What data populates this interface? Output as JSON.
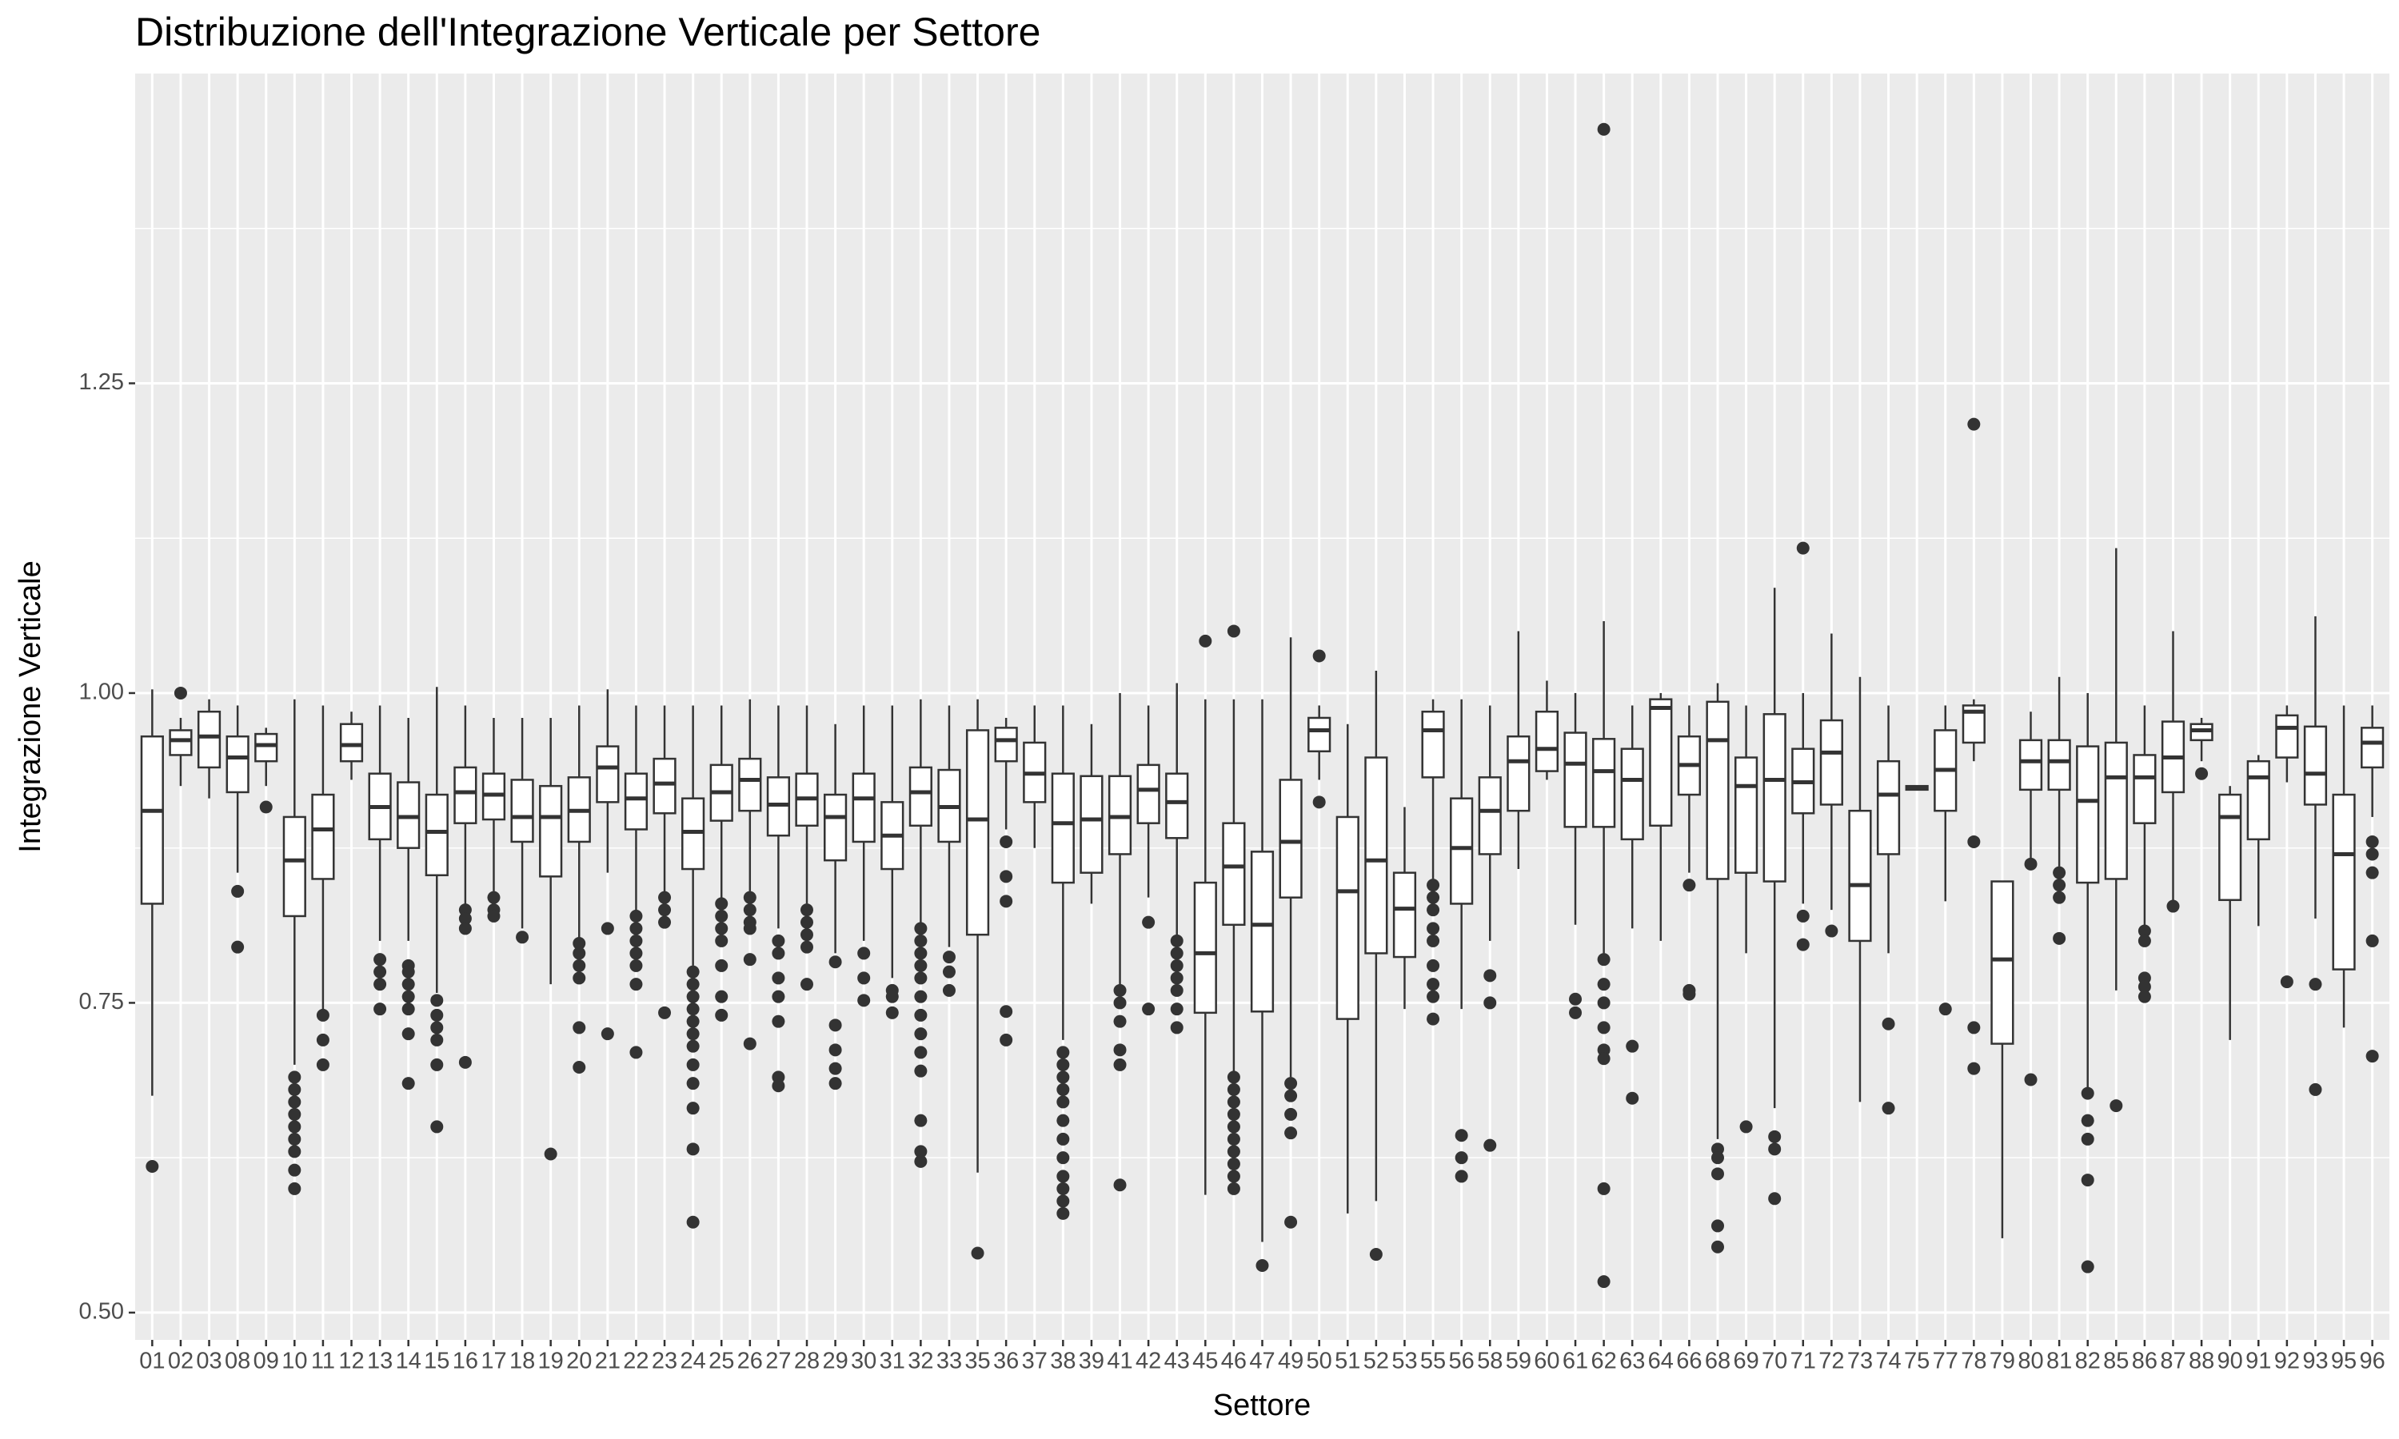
{
  "chart_data": {
    "type": "boxplot",
    "title": "Distribuzione dell'Integrazione Verticale per Settore",
    "x_label": "Settore",
    "y_label": "Integrazione Verticale",
    "ylim": [
      0.478,
      1.5
    ],
    "yticks": [
      {
        "value": 0.5,
        "label": "0.50"
      },
      {
        "value": 0.75,
        "label": "0.75"
      },
      {
        "value": 1.0,
        "label": "1.00"
      },
      {
        "value": 1.25,
        "label": "1.25"
      }
    ],
    "grid": true,
    "minor_grid": true,
    "color": "#333333",
    "box_fill": "#ffffff",
    "panel_color": "#ebebeb",
    "categories": [
      "01",
      "02",
      "03",
      "08",
      "09",
      "10",
      "11",
      "12",
      "13",
      "14",
      "15",
      "16",
      "17",
      "18",
      "19",
      "20",
      "21",
      "22",
      "23",
      "24",
      "25",
      "26",
      "27",
      "28",
      "29",
      "30",
      "31",
      "32",
      "33",
      "35",
      "36",
      "37",
      "38",
      "39",
      "41",
      "42",
      "43",
      "45",
      "46",
      "47",
      "49",
      "50",
      "51",
      "52",
      "53",
      "55",
      "56",
      "58",
      "59",
      "60",
      "61",
      "62",
      "63",
      "64",
      "66",
      "68",
      "69",
      "70",
      "71",
      "72",
      "73",
      "74",
      "75",
      "77",
      "78",
      "79",
      "80",
      "81",
      "82",
      "85",
      "86",
      "87",
      "88",
      "90",
      "91",
      "92",
      "93",
      "95",
      "96"
    ],
    "boxes": [
      {
        "min": 0.675,
        "q1": 0.83,
        "median": 0.905,
        "q3": 0.965,
        "max": 1.003,
        "outliers": [
          0.618
        ]
      },
      {
        "min": 0.925,
        "q1": 0.95,
        "median": 0.962,
        "q3": 0.97,
        "max": 0.98,
        "outliers": [
          1.0
        ]
      },
      {
        "min": 0.915,
        "q1": 0.94,
        "median": 0.965,
        "q3": 0.985,
        "max": 0.995,
        "outliers": []
      },
      {
        "min": 0.855,
        "q1": 0.92,
        "median": 0.948,
        "q3": 0.965,
        "max": 0.99,
        "outliers": [
          0.84,
          0.795
        ]
      },
      {
        "min": 0.925,
        "q1": 0.945,
        "median": 0.958,
        "q3": 0.967,
        "max": 0.972,
        "outliers": [
          0.908
        ]
      },
      {
        "min": 0.7,
        "q1": 0.82,
        "median": 0.865,
        "q3": 0.9,
        "max": 0.995,
        "outliers": [
          0.69,
          0.68,
          0.67,
          0.66,
          0.65,
          0.64,
          0.63,
          0.615,
          0.6
        ]
      },
      {
        "min": 0.745,
        "q1": 0.85,
        "median": 0.89,
        "q3": 0.918,
        "max": 0.99,
        "outliers": [
          0.74,
          0.72,
          0.7
        ]
      },
      {
        "min": 0.93,
        "q1": 0.945,
        "median": 0.958,
        "q3": 0.975,
        "max": 0.985,
        "outliers": []
      },
      {
        "min": 0.8,
        "q1": 0.882,
        "median": 0.908,
        "q3": 0.935,
        "max": 0.99,
        "outliers": [
          0.785,
          0.775,
          0.765,
          0.745
        ]
      },
      {
        "min": 0.8,
        "q1": 0.875,
        "median": 0.9,
        "q3": 0.928,
        "max": 0.98,
        "outliers": [
          0.78,
          0.775,
          0.765,
          0.755,
          0.745,
          0.725,
          0.685
        ]
      },
      {
        "min": 0.758,
        "q1": 0.853,
        "median": 0.888,
        "q3": 0.918,
        "max": 1.005,
        "outliers": [
          0.752,
          0.74,
          0.73,
          0.72,
          0.7,
          0.65
        ]
      },
      {
        "min": 0.828,
        "q1": 0.895,
        "median": 0.92,
        "q3": 0.94,
        "max": 0.99,
        "outliers": [
          0.825,
          0.818,
          0.81,
          0.702
        ]
      },
      {
        "min": 0.84,
        "q1": 0.898,
        "median": 0.918,
        "q3": 0.935,
        "max": 0.98,
        "outliers": [
          0.835,
          0.825,
          0.82
        ]
      },
      {
        "min": 0.81,
        "q1": 0.88,
        "median": 0.9,
        "q3": 0.93,
        "max": 0.98,
        "outliers": [
          0.803
        ]
      },
      {
        "min": 0.765,
        "q1": 0.852,
        "median": 0.9,
        "q3": 0.925,
        "max": 0.98,
        "outliers": [
          0.628
        ]
      },
      {
        "min": 0.8,
        "q1": 0.88,
        "median": 0.905,
        "q3": 0.932,
        "max": 0.99,
        "outliers": [
          0.798,
          0.79,
          0.78,
          0.77,
          0.73,
          0.698
        ]
      },
      {
        "min": 0.855,
        "q1": 0.912,
        "median": 0.94,
        "q3": 0.957,
        "max": 1.003,
        "outliers": [
          0.81,
          0.725
        ]
      },
      {
        "min": 0.825,
        "q1": 0.89,
        "median": 0.915,
        "q3": 0.935,
        "max": 0.99,
        "outliers": [
          0.82,
          0.81,
          0.8,
          0.79,
          0.78,
          0.765,
          0.71
        ]
      },
      {
        "min": 0.838,
        "q1": 0.903,
        "median": 0.927,
        "q3": 0.947,
        "max": 0.99,
        "outliers": [
          0.835,
          0.825,
          0.815,
          0.742
        ]
      },
      {
        "min": 0.78,
        "q1": 0.858,
        "median": 0.888,
        "q3": 0.915,
        "max": 0.99,
        "outliers": [
          0.775,
          0.765,
          0.755,
          0.745,
          0.735,
          0.725,
          0.715,
          0.7,
          0.685,
          0.665,
          0.632,
          0.573
        ]
      },
      {
        "min": 0.835,
        "q1": 0.897,
        "median": 0.92,
        "q3": 0.942,
        "max": 0.99,
        "outliers": [
          0.83,
          0.82,
          0.81,
          0.8,
          0.78,
          0.755,
          0.74
        ]
      },
      {
        "min": 0.84,
        "q1": 0.905,
        "median": 0.93,
        "q3": 0.947,
        "max": 0.995,
        "outliers": [
          0.835,
          0.825,
          0.815,
          0.81,
          0.785,
          0.717
        ]
      },
      {
        "min": 0.81,
        "q1": 0.885,
        "median": 0.91,
        "q3": 0.932,
        "max": 0.99,
        "outliers": [
          0.8,
          0.79,
          0.77,
          0.755,
          0.735,
          0.69,
          0.683
        ]
      },
      {
        "min": 0.83,
        "q1": 0.893,
        "median": 0.915,
        "q3": 0.935,
        "max": 0.99,
        "outliers": [
          0.825,
          0.815,
          0.805,
          0.795,
          0.765
        ]
      },
      {
        "min": 0.79,
        "q1": 0.865,
        "median": 0.9,
        "q3": 0.918,
        "max": 0.975,
        "outliers": [
          0.783,
          0.732,
          0.712,
          0.697,
          0.685
        ]
      },
      {
        "min": 0.8,
        "q1": 0.88,
        "median": 0.915,
        "q3": 0.935,
        "max": 0.99,
        "outliers": [
          0.79,
          0.77,
          0.752
        ]
      },
      {
        "min": 0.77,
        "q1": 0.858,
        "median": 0.885,
        "q3": 0.912,
        "max": 0.99,
        "outliers": [
          0.76,
          0.755,
          0.742
        ]
      },
      {
        "min": 0.815,
        "q1": 0.893,
        "median": 0.92,
        "q3": 0.94,
        "max": 0.995,
        "outliers": [
          0.81,
          0.8,
          0.79,
          0.78,
          0.77,
          0.755,
          0.74,
          0.725,
          0.71,
          0.695,
          0.655,
          0.63,
          0.622
        ]
      },
      {
        "min": 0.795,
        "q1": 0.88,
        "median": 0.908,
        "q3": 0.938,
        "max": 0.99,
        "outliers": [
          0.787,
          0.775,
          0.76
        ]
      },
      {
        "min": 0.613,
        "q1": 0.805,
        "median": 0.898,
        "q3": 0.97,
        "max": 0.995,
        "outliers": [
          0.548
        ]
      },
      {
        "min": 0.89,
        "q1": 0.945,
        "median": 0.962,
        "q3": 0.972,
        "max": 0.98,
        "outliers": [
          0.88,
          0.852,
          0.832,
          0.743,
          0.72
        ]
      },
      {
        "min": 0.875,
        "q1": 0.912,
        "median": 0.935,
        "q3": 0.96,
        "max": 0.99,
        "outliers": []
      },
      {
        "min": 0.72,
        "q1": 0.847,
        "median": 0.895,
        "q3": 0.935,
        "max": 0.99,
        "outliers": [
          0.71,
          0.7,
          0.69,
          0.68,
          0.67,
          0.655,
          0.64,
          0.625,
          0.61,
          0.6,
          0.59,
          0.58
        ]
      },
      {
        "min": 0.83,
        "q1": 0.855,
        "median": 0.898,
        "q3": 0.933,
        "max": 0.975,
        "outliers": []
      },
      {
        "min": 0.765,
        "q1": 0.87,
        "median": 0.9,
        "q3": 0.933,
        "max": 1.0,
        "outliers": [
          0.76,
          0.75,
          0.735,
          0.712,
          0.7,
          0.603
        ]
      },
      {
        "min": 0.835,
        "q1": 0.895,
        "median": 0.922,
        "q3": 0.942,
        "max": 0.99,
        "outliers": [
          0.815,
          0.745
        ]
      },
      {
        "min": 0.805,
        "q1": 0.883,
        "median": 0.912,
        "q3": 0.935,
        "max": 1.008,
        "outliers": [
          0.8,
          0.79,
          0.78,
          0.77,
          0.76,
          0.745,
          0.73
        ]
      },
      {
        "min": 0.595,
        "q1": 0.742,
        "median": 0.79,
        "q3": 0.847,
        "max": 0.995,
        "outliers": [
          1.042
        ]
      },
      {
        "min": 0.695,
        "q1": 0.813,
        "median": 0.86,
        "q3": 0.895,
        "max": 0.995,
        "outliers": [
          1.05,
          0.69,
          0.68,
          0.67,
          0.66,
          0.65,
          0.64,
          0.63,
          0.62,
          0.61,
          0.6
        ]
      },
      {
        "min": 0.557,
        "q1": 0.743,
        "median": 0.813,
        "q3": 0.872,
        "max": 0.995,
        "outliers": [
          0.538
        ]
      },
      {
        "min": 0.69,
        "q1": 0.835,
        "median": 0.88,
        "q3": 0.93,
        "max": 1.045,
        "outliers": [
          0.685,
          0.675,
          0.66,
          0.645,
          0.573
        ]
      },
      {
        "min": 0.93,
        "q1": 0.953,
        "median": 0.97,
        "q3": 0.98,
        "max": 0.99,
        "outliers": [
          1.03,
          0.912
        ]
      },
      {
        "min": 0.58,
        "q1": 0.737,
        "median": 0.84,
        "q3": 0.9,
        "max": 0.975,
        "outliers": []
      },
      {
        "min": 0.59,
        "q1": 0.79,
        "median": 0.865,
        "q3": 0.948,
        "max": 1.018,
        "outliers": [
          0.547
        ]
      },
      {
        "min": 0.745,
        "q1": 0.787,
        "median": 0.826,
        "q3": 0.855,
        "max": 0.908,
        "outliers": []
      },
      {
        "min": 0.85,
        "q1": 0.932,
        "median": 0.97,
        "q3": 0.985,
        "max": 0.995,
        "outliers": [
          0.845,
          0.835,
          0.825,
          0.81,
          0.8,
          0.78,
          0.765,
          0.755,
          0.737
        ]
      },
      {
        "min": 0.745,
        "q1": 0.83,
        "median": 0.875,
        "q3": 0.915,
        "max": 0.995,
        "outliers": [
          0.643,
          0.625,
          0.61
        ]
      },
      {
        "min": 0.8,
        "q1": 0.87,
        "median": 0.905,
        "q3": 0.932,
        "max": 0.99,
        "outliers": [
          0.772,
          0.75,
          0.635
        ]
      },
      {
        "min": 0.858,
        "q1": 0.905,
        "median": 0.945,
        "q3": 0.965,
        "max": 1.05,
        "outliers": []
      },
      {
        "min": 0.93,
        "q1": 0.937,
        "median": 0.955,
        "q3": 0.985,
        "max": 1.01,
        "outliers": []
      },
      {
        "min": 0.813,
        "q1": 0.892,
        "median": 0.943,
        "q3": 0.968,
        "max": 1.0,
        "outliers": [
          0.753,
          0.742
        ]
      },
      {
        "min": 0.79,
        "q1": 0.892,
        "median": 0.937,
        "q3": 0.963,
        "max": 1.058,
        "outliers": [
          1.455,
          0.785,
          0.765,
          0.75,
          0.73,
          0.712,
          0.705,
          0.6,
          0.525
        ]
      },
      {
        "min": 0.81,
        "q1": 0.882,
        "median": 0.93,
        "q3": 0.955,
        "max": 0.99,
        "outliers": [
          0.715,
          0.673
        ]
      },
      {
        "min": 0.8,
        "q1": 0.893,
        "median": 0.988,
        "q3": 0.995,
        "max": 1.0,
        "outliers": []
      },
      {
        "min": 0.855,
        "q1": 0.918,
        "median": 0.942,
        "q3": 0.965,
        "max": 0.99,
        "outliers": [
          0.845,
          0.76,
          0.757
        ]
      },
      {
        "min": 0.64,
        "q1": 0.85,
        "median": 0.962,
        "q3": 0.993,
        "max": 1.008,
        "outliers": [
          0.632,
          0.625,
          0.612,
          0.57,
          0.553
        ]
      },
      {
        "min": 0.79,
        "q1": 0.855,
        "median": 0.925,
        "q3": 0.948,
        "max": 0.99,
        "outliers": [
          0.65
        ]
      },
      {
        "min": 0.665,
        "q1": 0.848,
        "median": 0.93,
        "q3": 0.983,
        "max": 1.085,
        "outliers": [
          0.642,
          0.632,
          0.592
        ]
      },
      {
        "min": 0.83,
        "q1": 0.903,
        "median": 0.928,
        "q3": 0.955,
        "max": 1.0,
        "outliers": [
          1.117,
          0.82,
          0.797
        ]
      },
      {
        "min": 0.825,
        "q1": 0.91,
        "median": 0.952,
        "q3": 0.978,
        "max": 1.048,
        "outliers": [
          0.808
        ]
      },
      {
        "min": 0.67,
        "q1": 0.8,
        "median": 0.845,
        "q3": 0.905,
        "max": 1.013,
        "outliers": []
      },
      {
        "min": 0.79,
        "q1": 0.87,
        "median": 0.918,
        "q3": 0.945,
        "max": 0.99,
        "outliers": [
          0.733,
          0.665
        ]
      },
      {
        "min": 0.922,
        "q1": 0.922,
        "median": 0.923,
        "q3": 0.925,
        "max": 0.925,
        "outliers": []
      },
      {
        "min": 0.832,
        "q1": 0.905,
        "median": 0.938,
        "q3": 0.97,
        "max": 0.99,
        "outliers": [
          0.745
        ]
      },
      {
        "min": 0.945,
        "q1": 0.96,
        "median": 0.985,
        "q3": 0.99,
        "max": 0.995,
        "outliers": [
          1.217,
          0.88,
          0.73,
          0.697
        ]
      },
      {
        "min": 0.56,
        "q1": 0.717,
        "median": 0.785,
        "q3": 0.848,
        "max": 0.848,
        "outliers": []
      },
      {
        "min": 0.865,
        "q1": 0.922,
        "median": 0.945,
        "q3": 0.962,
        "max": 0.985,
        "outliers": [
          0.862,
          0.688
        ]
      },
      {
        "min": 0.86,
        "q1": 0.922,
        "median": 0.945,
        "q3": 0.962,
        "max": 1.013,
        "outliers": [
          0.855,
          0.845,
          0.835,
          0.802
        ]
      },
      {
        "min": 0.68,
        "q1": 0.847,
        "median": 0.913,
        "q3": 0.957,
        "max": 1.0,
        "outliers": [
          0.677,
          0.655,
          0.64,
          0.607,
          0.537
        ]
      },
      {
        "min": 0.76,
        "q1": 0.85,
        "median": 0.932,
        "q3": 0.96,
        "max": 1.117,
        "outliers": [
          0.667
        ]
      },
      {
        "min": 0.81,
        "q1": 0.895,
        "median": 0.932,
        "q3": 0.95,
        "max": 0.99,
        "outliers": [
          0.808,
          0.8,
          0.77,
          0.763,
          0.755
        ]
      },
      {
        "min": 0.83,
        "q1": 0.92,
        "median": 0.948,
        "q3": 0.977,
        "max": 1.05,
        "outliers": [
          0.828
        ]
      },
      {
        "min": 0.945,
        "q1": 0.962,
        "median": 0.97,
        "q3": 0.975,
        "max": 0.98,
        "outliers": [
          0.935
        ]
      },
      {
        "min": 0.72,
        "q1": 0.833,
        "median": 0.9,
        "q3": 0.918,
        "max": 0.925,
        "outliers": []
      },
      {
        "min": 0.812,
        "q1": 0.882,
        "median": 0.932,
        "q3": 0.945,
        "max": 0.95,
        "outliers": []
      },
      {
        "min": 0.928,
        "q1": 0.948,
        "median": 0.972,
        "q3": 0.982,
        "max": 0.99,
        "outliers": [
          0.767
        ]
      },
      {
        "min": 0.818,
        "q1": 0.91,
        "median": 0.935,
        "q3": 0.973,
        "max": 1.062,
        "outliers": [
          0.765,
          0.68
        ]
      },
      {
        "min": 0.73,
        "q1": 0.777,
        "median": 0.87,
        "q3": 0.918,
        "max": 0.99,
        "outliers": []
      },
      {
        "min": 0.9,
        "q1": 0.94,
        "median": 0.96,
        "q3": 0.972,
        "max": 0.99,
        "outliers": [
          0.88,
          0.87,
          0.855,
          0.8,
          0.707
        ]
      }
    ]
  }
}
